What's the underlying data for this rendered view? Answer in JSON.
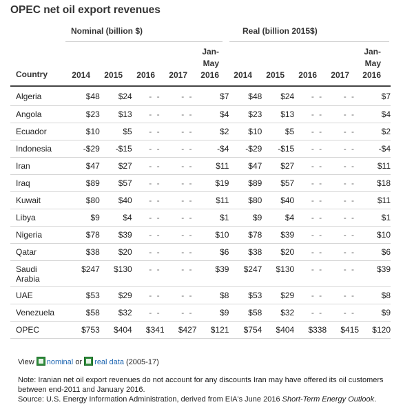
{
  "title": "OPEC net oil export revenues",
  "groups": {
    "nominal": "Nominal (billion $)",
    "real": "Real (billion 2015$)"
  },
  "columns": {
    "country": "Country",
    "years": [
      "2014",
      "2015",
      "2016",
      "2017"
    ],
    "jan_may_1": "Jan-",
    "jan_may_2": "May",
    "jan_may_3": "2016"
  },
  "rows": [
    {
      "name": "Algeria",
      "n": [
        "$48",
        "$24",
        "- -",
        "- -",
        "$7"
      ],
      "r": [
        "$48",
        "$24",
        "- -",
        "- -",
        "$7"
      ]
    },
    {
      "name": "Angola",
      "n": [
        "$23",
        "$13",
        "- -",
        "- -",
        "$4"
      ],
      "r": [
        "$23",
        "$13",
        "- -",
        "- -",
        "$4"
      ]
    },
    {
      "name": "Ecuador",
      "n": [
        "$10",
        "$5",
        "- -",
        "- -",
        "$2"
      ],
      "r": [
        "$10",
        "$5",
        "- -",
        "- -",
        "$2"
      ]
    },
    {
      "name": "Indonesia",
      "n": [
        "-$29",
        "-$15",
        "- -",
        "- -",
        "-$4"
      ],
      "r": [
        "-$29",
        "-$15",
        "- -",
        "- -",
        "-$4"
      ]
    },
    {
      "name": "Iran",
      "n": [
        "$47",
        "$27",
        "- -",
        "- -",
        "$11"
      ],
      "r": [
        "$47",
        "$27",
        "- -",
        "- -",
        "$11"
      ]
    },
    {
      "name": "Iraq",
      "n": [
        "$89",
        "$57",
        "- -",
        "- -",
        "$19"
      ],
      "r": [
        "$89",
        "$57",
        "- -",
        "- -",
        "$18"
      ]
    },
    {
      "name": "Kuwait",
      "n": [
        "$80",
        "$40",
        "- -",
        "- -",
        "$11"
      ],
      "r": [
        "$80",
        "$40",
        "- -",
        "- -",
        "$11"
      ]
    },
    {
      "name": "Libya",
      "n": [
        "$9",
        "$4",
        "- -",
        "- -",
        "$1"
      ],
      "r": [
        "$9",
        "$4",
        "- -",
        "- -",
        "$1"
      ]
    },
    {
      "name": "Nigeria",
      "n": [
        "$78",
        "$39",
        "- -",
        "- -",
        "$10"
      ],
      "r": [
        "$78",
        "$39",
        "- -",
        "- -",
        "$10"
      ]
    },
    {
      "name": "Qatar",
      "n": [
        "$38",
        "$20",
        "- -",
        "- -",
        "$6"
      ],
      "r": [
        "$38",
        "$20",
        "- -",
        "- -",
        "$6"
      ]
    },
    {
      "name_1": "Saudi",
      "name_2": "Arabia",
      "n": [
        "$247",
        "$130",
        "- -",
        "- -",
        "$39"
      ],
      "r": [
        "$247",
        "$130",
        "- -",
        "- -",
        "$39"
      ]
    },
    {
      "name": "UAE",
      "n": [
        "$53",
        "$29",
        "- -",
        "- -",
        "$8"
      ],
      "r": [
        "$53",
        "$29",
        "- -",
        "- -",
        "$8"
      ]
    },
    {
      "name": "Venezuela",
      "n": [
        "$58",
        "$32",
        "- -",
        "- -",
        "$9"
      ],
      "r": [
        "$58",
        "$32",
        "- -",
        "- -",
        "$9"
      ]
    },
    {
      "name": "OPEC",
      "n": [
        "$753",
        "$404",
        "$341",
        "$427",
        "$121"
      ],
      "r": [
        "$754",
        "$404",
        "$338",
        "$415",
        "$120"
      ]
    }
  ],
  "view": {
    "prefix": "View",
    "link1": "nominal",
    "or": "or",
    "link2": "real data",
    "suffix": "(2005-17)"
  },
  "note": {
    "line1": "Note: Iranian net oil export revenues do not account for any discounts Iran may have offered its oil customers between end-2011 and January 2016.",
    "source": "Source: U.S. Energy Information Administration, derived from EIA's June 2016 ",
    "source_italic": "Short-Term Energy Outlook",
    "source_end": "."
  }
}
